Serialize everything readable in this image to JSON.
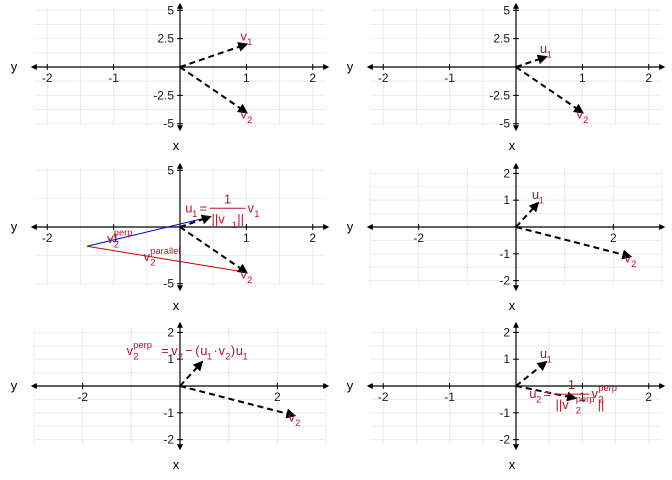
{
  "figure": {
    "colors": {
      "grid": "#ebebeb",
      "axis": "#000000",
      "arrow": "#000000",
      "vector_label": "#b2182b",
      "perp_line": "#0000cd",
      "parallel_line": "#cc0000"
    }
  },
  "chart_data": [
    {
      "type": "scatter",
      "panel": "row1-left",
      "xlabel": "x",
      "ylabel": "y",
      "xlim": [
        -2.2,
        2.2
      ],
      "ylim": [
        -5.2,
        5.2
      ],
      "xticks": [
        -2,
        -1,
        1,
        2
      ],
      "xtick_labels": [
        "-2",
        "-1",
        "1",
        "2"
      ],
      "yticks": [
        -5,
        -2.5,
        2.5,
        5
      ],
      "ytick_labels": [
        "-5",
        "-2.5",
        "2.5",
        "5"
      ],
      "vectors": [
        {
          "name": "v1",
          "label": "v",
          "sub": "1",
          "x": 1,
          "y": 2
        },
        {
          "name": "v2",
          "label": "v",
          "sub": "2",
          "x": 1,
          "y": -4
        }
      ],
      "segments": [],
      "annotations": []
    },
    {
      "type": "scatter",
      "panel": "row1-right",
      "xlabel": "x",
      "ylabel": "y",
      "xlim": [
        -2.2,
        2.2
      ],
      "ylim": [
        -5.2,
        5.2
      ],
      "xticks": [
        -2,
        -1,
        1,
        2
      ],
      "xtick_labels": [
        "-2",
        "-1",
        "1",
        "2"
      ],
      "yticks": [
        -5,
        -2.5,
        2.5,
        5
      ],
      "ytick_labels": [
        "-5",
        "-2.5",
        "2.5",
        "5"
      ],
      "vectors": [
        {
          "name": "u1",
          "label": "u",
          "sub": "1",
          "x": 0.45,
          "y": 0.89
        },
        {
          "name": "v2",
          "label": "v",
          "sub": "2",
          "x": 1,
          "y": -4
        }
      ],
      "segments": [],
      "annotations": []
    },
    {
      "type": "scatter",
      "panel": "row2-left",
      "xlabel": "x",
      "ylabel": "y",
      "xlim": [
        -2.2,
        2.2
      ],
      "ylim": [
        -5.2,
        5.2
      ],
      "xticks": [
        -2,
        -1,
        1,
        2
      ],
      "xtick_labels": [
        "-2",
        "-1",
        "1",
        "2"
      ],
      "yticks": [
        -5,
        5
      ],
      "ytick_labels": [
        "-5",
        "5"
      ],
      "vectors": [
        {
          "name": "u1",
          "label": "",
          "sub": "",
          "x": 0.45,
          "y": 0.89
        },
        {
          "name": "v2",
          "label": "v",
          "sub": "2",
          "x": 1,
          "y": -4
        }
      ],
      "segments": [
        {
          "name": "v2-perp",
          "from": [
            -1.4,
            -1.7
          ],
          "to": [
            0.45,
            0.89
          ],
          "color": "perp_line"
        },
        {
          "name": "v2-parallel",
          "from": [
            -1.4,
            -1.7
          ],
          "to": [
            1,
            -4
          ],
          "color": "parallel_line"
        }
      ],
      "annotations": [
        {
          "name": "u1-formula",
          "kind": "fraction",
          "lhs": "u",
          "lhs_sub": "1",
          "eq": "=",
          "num": "1",
          "den_pre": "||v",
          "den_sub": "1",
          "den_post": "||",
          "tail": "v",
          "tail_sub": "1",
          "x": 0.08,
          "y": 1.3
        },
        {
          "name": "v2-perp-label",
          "kind": "supsub",
          "base": "v",
          "sub": "2",
          "sup": "perp",
          "x": -1.1,
          "y": -1.4
        },
        {
          "name": "v2-parallel-label",
          "kind": "supsub",
          "base": "v",
          "sub": "2",
          "sup": "parallel",
          "x": -0.55,
          "y": -3.0
        }
      ]
    },
    {
      "type": "scatter",
      "panel": "row2-right",
      "xlabel": "x",
      "ylabel": "y",
      "xlim": [
        -3.0,
        3.0
      ],
      "ylim": [
        -2.2,
        2.2
      ],
      "xticks": [
        -2,
        2
      ],
      "xtick_labels": [
        "-2",
        "2"
      ],
      "yticks": [
        -2,
        -1,
        1,
        2
      ],
      "ytick_labels": [
        "-2",
        "-1",
        "1",
        "2"
      ],
      "vectors": [
        {
          "name": "u1",
          "label": "u",
          "sub": "1",
          "x": 0.45,
          "y": 0.89
        },
        {
          "name": "v2",
          "label": "v",
          "sub": "2",
          "x": 2.35,
          "y": -1.1
        }
      ],
      "segments": [],
      "annotations": []
    },
    {
      "type": "scatter",
      "panel": "row3-left",
      "xlabel": "x",
      "ylabel": "y",
      "xlim": [
        -3.0,
        3.0
      ],
      "ylim": [
        -2.2,
        2.2
      ],
      "xticks": [
        -2,
        2
      ],
      "xtick_labels": [
        "-2",
        "2"
      ],
      "yticks": [
        -2,
        -1,
        1,
        2
      ],
      "ytick_labels": [
        "-2",
        "-1",
        "1",
        "2"
      ],
      "vectors": [
        {
          "name": "u1",
          "label": "",
          "sub": "",
          "x": 0.45,
          "y": 0.89
        },
        {
          "name": "v2",
          "label": "v",
          "sub": "2",
          "x": 2.35,
          "y": -1.1
        }
      ],
      "segments": [],
      "annotations": [
        {
          "name": "v2-perp-formula",
          "kind": "formula",
          "x": -1.1,
          "y": 1.15
        }
      ]
    },
    {
      "type": "scatter",
      "panel": "row3-right",
      "xlabel": "x",
      "ylabel": "y",
      "xlim": [
        -2.2,
        2.2
      ],
      "ylim": [
        -2.2,
        2.2
      ],
      "xticks": [
        -2,
        -1,
        1,
        2
      ],
      "xtick_labels": [
        "-2",
        "-1",
        "1",
        "2"
      ],
      "yticks": [
        -2,
        -1,
        1,
        2
      ],
      "ytick_labels": [
        "-2",
        "-1",
        "1",
        "2"
      ],
      "vectors": [
        {
          "name": "u1",
          "label": "u",
          "sub": "1",
          "x": 0.45,
          "y": 0.89
        },
        {
          "name": "u2",
          "label": "",
          "sub": "",
          "x": 0.89,
          "y": -0.45
        }
      ],
      "segments": [],
      "annotations": [
        {
          "name": "u2-formula",
          "kind": "fraction",
          "lhs": "u",
          "lhs_sub": "2",
          "eq": "=",
          "num": "1",
          "den_pre": "||v",
          "den_sub": "2",
          "den_sup": "perp",
          "den_post": "||",
          "tail": "v",
          "tail_sub": "2",
          "tail_sup": "perp",
          "x": 0.2,
          "y": -0.45
        }
      ]
    }
  ]
}
